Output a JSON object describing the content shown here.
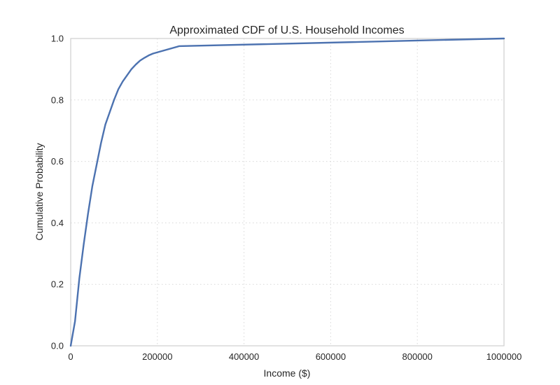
{
  "chart_data": {
    "type": "line",
    "title": "Approximated CDF of U.S. Household Incomes",
    "xlabel": "Income ($)",
    "ylabel": "Cumulative Probability",
    "xlim": [
      0,
      1000000
    ],
    "ylim": [
      0,
      1.0
    ],
    "grid": true,
    "x_ticks": [
      0,
      200000,
      400000,
      600000,
      800000,
      1000000
    ],
    "x_tick_labels": [
      "0",
      "200000",
      "400000",
      "600000",
      "800000",
      "1000000"
    ],
    "y_ticks": [
      0,
      0.2,
      0.4,
      0.6,
      0.8,
      1.0
    ],
    "y_tick_labels": [
      "0.0",
      "0.2",
      "0.4",
      "0.6",
      "0.8",
      "1.0"
    ],
    "series": [
      {
        "color": "#4c72b0",
        "x": [
          0,
          10000,
          20000,
          30000,
          40000,
          50000,
          60000,
          70000,
          80000,
          90000,
          100000,
          110000,
          120000,
          130000,
          140000,
          150000,
          160000,
          170000,
          180000,
          190000,
          200000,
          250000,
          1000000
        ],
        "y": [
          0.0,
          0.08,
          0.22,
          0.33,
          0.43,
          0.52,
          0.59,
          0.66,
          0.72,
          0.76,
          0.8,
          0.835,
          0.86,
          0.88,
          0.9,
          0.915,
          0.928,
          0.937,
          0.945,
          0.951,
          0.955,
          0.975,
          1.0
        ]
      }
    ]
  }
}
